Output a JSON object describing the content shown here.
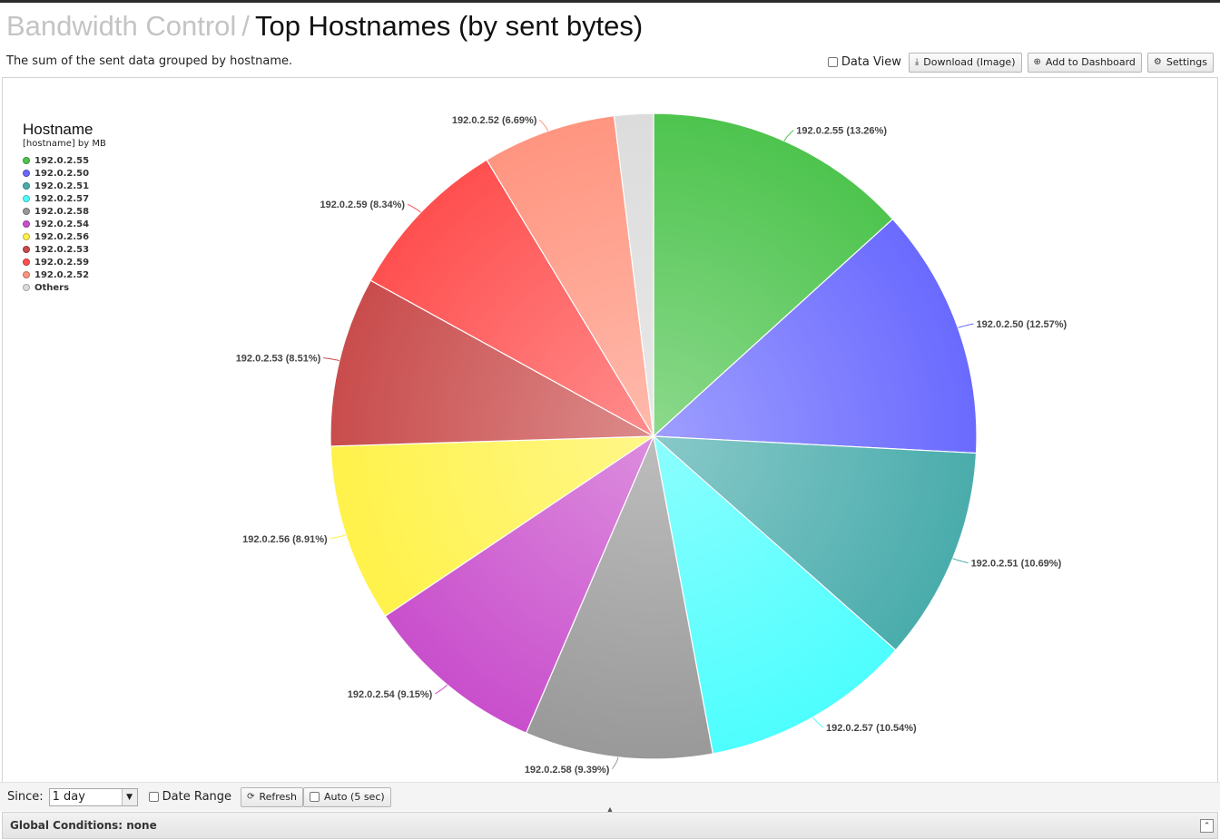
{
  "header": {
    "breadcrumb": "Bandwidth Control",
    "separator": "/",
    "title": "Top Hostnames (by sent bytes)",
    "description": "The sum of the sent data grouped by hostname."
  },
  "toolbar": {
    "data_view_label": "Data View",
    "download_label": "Download (Image)",
    "add_dashboard_label": "Add to Dashboard",
    "settings_label": "Settings",
    "icons": [
      "download-icon",
      "plus-circle-icon",
      "gear-icon"
    ]
  },
  "chart_data": {
    "type": "pie",
    "legend_title": "Hostname",
    "legend_subtitle": "[hostname] by MB",
    "legend_placement": "top-left",
    "slices": [
      {
        "name": "192.0.2.55",
        "percent": 13.26,
        "label": "192.0.2.55 (13.26%)",
        "color": "#4ec44e"
      },
      {
        "name": "192.0.2.50",
        "percent": 12.57,
        "label": "192.0.2.50 (12.57%)",
        "color": "#6a6aff"
      },
      {
        "name": "192.0.2.51",
        "percent": 10.69,
        "label": "192.0.2.51 (10.69%)",
        "color": "#4aacac"
      },
      {
        "name": "192.0.2.57",
        "percent": 10.54,
        "label": "192.0.2.57 (10.54%)",
        "color": "#4efefe"
      },
      {
        "name": "192.0.2.58",
        "percent": 9.39,
        "label": "192.0.2.58 (9.39%)",
        "color": "#999999"
      },
      {
        "name": "192.0.2.54",
        "percent": 9.15,
        "label": "192.0.2.54 (9.15%)",
        "color": "#c94fcc"
      },
      {
        "name": "192.0.2.56",
        "percent": 8.91,
        "label": "192.0.2.56 (8.91%)",
        "color": "#fff24a"
      },
      {
        "name": "192.0.2.53",
        "percent": 8.51,
        "label": "192.0.2.53 (8.51%)",
        "color": "#c94c4c"
      },
      {
        "name": "192.0.2.59",
        "percent": 8.34,
        "label": "192.0.2.59 (8.34%)",
        "color": "#ff4f4f"
      },
      {
        "name": "192.0.2.52",
        "percent": 6.69,
        "label": "192.0.2.52 (6.69%)",
        "color": "#ff9580"
      },
      {
        "name": "Others",
        "percent": 1.95,
        "label": "",
        "color": "#dcdcdc"
      }
    ]
  },
  "footer": {
    "since_label": "Since:",
    "since_value": "1 day",
    "date_range_label": "Date Range",
    "refresh_label": "Refresh",
    "auto_label": "Auto (5 sec)",
    "global_conditions": "Global Conditions: none"
  }
}
